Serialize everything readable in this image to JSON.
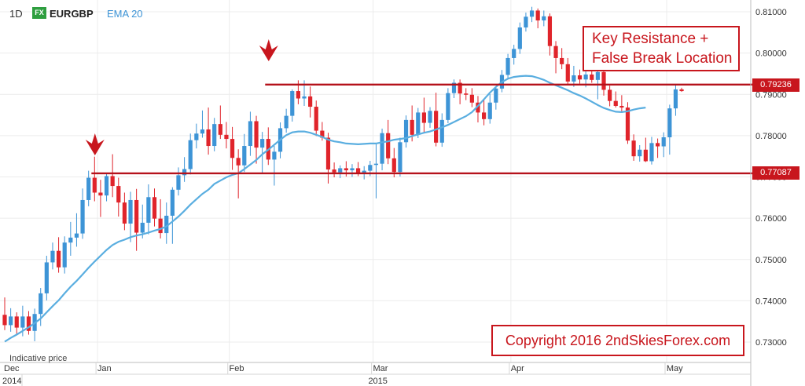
{
  "header": {
    "timeframe": "1D",
    "fx_badge": "FX",
    "symbol": "EURGBP",
    "indicator": "EMA 20"
  },
  "indicative_label": "Indicative price",
  "annotations": {
    "resistance_line1": "Key Resistance +",
    "resistance_line2": "False Break Location",
    "copyright": "Copyright 2016 2ndSkiesForex.com"
  },
  "colors": {
    "up": "#3d94d6",
    "down": "#e0242b",
    "ema": "#5aaee0",
    "level": "#b5121b",
    "annotation": "#c8161d"
  },
  "chart_data": {
    "type": "candlestick",
    "symbol": "EURGBP",
    "timeframe": "1D",
    "ylim": [
      0.7288,
      0.8112
    ],
    "y_ticks": [
      "0.73000",
      "0.74000",
      "0.75000",
      "0.76000",
      "0.77000",
      "0.78000",
      "0.79000",
      "0.80000",
      "0.81000"
    ],
    "x_labels": [
      {
        "label": "Dec",
        "index": 0
      },
      {
        "label": "Jan",
        "index": 16
      },
      {
        "label": "Feb",
        "index": 38
      },
      {
        "label": "Mar",
        "index": 62
      },
      {
        "label": "Apr",
        "index": 85
      },
      {
        "label": "May",
        "index": 111
      }
    ],
    "year_labels": [
      {
        "label": "2014",
        "index": 0
      },
      {
        "label": "2015",
        "index": 62
      }
    ],
    "levels": [
      {
        "value": 0.79236,
        "label": "0.79236"
      },
      {
        "value": 0.77087,
        "label": "0.77087"
      }
    ],
    "markers": [
      {
        "type": "down-arrow",
        "index": 15
      },
      {
        "type": "down-arrow",
        "index": 44
      }
    ],
    "candles": [
      [
        0.7366,
        0.7408,
        0.7329,
        0.7341
      ],
      [
        0.7341,
        0.7382,
        0.7325,
        0.7362
      ],
      [
        0.7362,
        0.7372,
        0.7318,
        0.7335
      ],
      [
        0.7335,
        0.7388,
        0.7314,
        0.7362
      ],
      [
        0.7362,
        0.7375,
        0.7318,
        0.7327
      ],
      [
        0.7327,
        0.7381,
        0.7302,
        0.7368
      ],
      [
        0.7368,
        0.7431,
        0.7339,
        0.7418
      ],
      [
        0.7418,
        0.7509,
        0.7401,
        0.7493
      ],
      [
        0.7493,
        0.7541,
        0.7476,
        0.7521
      ],
      [
        0.7521,
        0.7554,
        0.7468,
        0.7481
      ],
      [
        0.7481,
        0.7556,
        0.7466,
        0.7541
      ],
      [
        0.7541,
        0.7591,
        0.7509,
        0.7553
      ],
      [
        0.7553,
        0.7612,
        0.7531,
        0.7563
      ],
      [
        0.7563,
        0.7672,
        0.755,
        0.7644
      ],
      [
        0.7644,
        0.7715,
        0.7629,
        0.7698
      ],
      [
        0.7698,
        0.7749,
        0.7641,
        0.7662
      ],
      [
        0.7662,
        0.7693,
        0.7603,
        0.7655
      ],
      [
        0.7655,
        0.7709,
        0.7641,
        0.7702
      ],
      [
        0.7702,
        0.7755,
        0.7651,
        0.7678
      ],
      [
        0.7678,
        0.7698,
        0.7604,
        0.7638
      ],
      [
        0.7638,
        0.7662,
        0.7571,
        0.7587
      ],
      [
        0.7587,
        0.7664,
        0.7542,
        0.7644
      ],
      [
        0.7644,
        0.7671,
        0.7521,
        0.7565
      ],
      [
        0.7565,
        0.7633,
        0.7551,
        0.7589
      ],
      [
        0.7589,
        0.7682,
        0.7561,
        0.7651
      ],
      [
        0.7651,
        0.7672,
        0.758,
        0.7599
      ],
      [
        0.7599,
        0.7646,
        0.7551,
        0.7564
      ],
      [
        0.7564,
        0.7638,
        0.7538,
        0.7606
      ],
      [
        0.7606,
        0.7675,
        0.7538,
        0.7669
      ],
      [
        0.7669,
        0.7723,
        0.7655,
        0.7704
      ],
      [
        0.7704,
        0.7748,
        0.7688,
        0.7719
      ],
      [
        0.7719,
        0.7805,
        0.7706,
        0.7789
      ],
      [
        0.7789,
        0.7829,
        0.7769,
        0.7805
      ],
      [
        0.7805,
        0.7861,
        0.7795,
        0.7815
      ],
      [
        0.7815,
        0.7868,
        0.7754,
        0.7775
      ],
      [
        0.7775,
        0.7843,
        0.7762,
        0.7828
      ],
      [
        0.7828,
        0.7873,
        0.7792,
        0.7802
      ],
      [
        0.7802,
        0.7833,
        0.7769,
        0.7792
      ],
      [
        0.7792,
        0.7821,
        0.7717,
        0.7746
      ],
      [
        0.7746,
        0.7767,
        0.7648,
        0.7728
      ],
      [
        0.7728,
        0.7804,
        0.7712,
        0.7775
      ],
      [
        0.7775,
        0.7858,
        0.7751,
        0.7835
      ],
      [
        0.7835,
        0.7848,
        0.7732,
        0.7771
      ],
      [
        0.7771,
        0.7809,
        0.7709,
        0.7792
      ],
      [
        0.7792,
        0.782,
        0.7729,
        0.7742
      ],
      [
        0.7742,
        0.7775,
        0.7679,
        0.7761
      ],
      [
        0.7761,
        0.7832,
        0.7745,
        0.7818
      ],
      [
        0.7818,
        0.7865,
        0.7807,
        0.7848
      ],
      [
        0.7848,
        0.7912,
        0.7834,
        0.7908
      ],
      [
        0.7908,
        0.7934,
        0.7876,
        0.789
      ],
      [
        0.789,
        0.7934,
        0.7872,
        0.7895
      ],
      [
        0.7895,
        0.7919,
        0.7844,
        0.787
      ],
      [
        0.787,
        0.7885,
        0.7799,
        0.7812
      ],
      [
        0.7812,
        0.7833,
        0.7788,
        0.7795
      ],
      [
        0.7795,
        0.7807,
        0.7684,
        0.7718
      ],
      [
        0.7718,
        0.7735,
        0.7699,
        0.7711
      ],
      [
        0.7711,
        0.7728,
        0.7697,
        0.7721
      ],
      [
        0.7721,
        0.7738,
        0.7701,
        0.7716
      ],
      [
        0.7716,
        0.7731,
        0.77,
        0.7721
      ],
      [
        0.7721,
        0.7736,
        0.7702,
        0.7708
      ],
      [
        0.7708,
        0.7726,
        0.7694,
        0.7715
      ],
      [
        0.7715,
        0.7739,
        0.7702,
        0.7729
      ],
      [
        0.7729,
        0.7782,
        0.7648,
        0.7732
      ],
      [
        0.7732,
        0.7817,
        0.7716,
        0.7806
      ],
      [
        0.7806,
        0.7838,
        0.7731,
        0.7745
      ],
      [
        0.7745,
        0.777,
        0.7699,
        0.7712
      ],
      [
        0.7712,
        0.7795,
        0.7701,
        0.7784
      ],
      [
        0.7784,
        0.7849,
        0.7771,
        0.7838
      ],
      [
        0.7838,
        0.7873,
        0.7786,
        0.7802
      ],
      [
        0.7802,
        0.7867,
        0.7794,
        0.7856
      ],
      [
        0.7856,
        0.7892,
        0.7808,
        0.7831
      ],
      [
        0.7831,
        0.7869,
        0.7819,
        0.786
      ],
      [
        0.786,
        0.7904,
        0.7774,
        0.7783
      ],
      [
        0.7783,
        0.7854,
        0.7773,
        0.7838
      ],
      [
        0.7838,
        0.7915,
        0.783,
        0.7903
      ],
      [
        0.7903,
        0.7936,
        0.7891,
        0.7928
      ],
      [
        0.7928,
        0.7936,
        0.7876,
        0.7902
      ],
      [
        0.7902,
        0.7915,
        0.7886,
        0.7899
      ],
      [
        0.7899,
        0.7915,
        0.7869,
        0.788
      ],
      [
        0.788,
        0.7896,
        0.7832,
        0.7856
      ],
      [
        0.7856,
        0.7886,
        0.7825,
        0.784
      ],
      [
        0.784,
        0.7901,
        0.7829,
        0.788
      ],
      [
        0.788,
        0.7916,
        0.7863,
        0.7914
      ],
      [
        0.7914,
        0.7959,
        0.7905,
        0.7947
      ],
      [
        0.7947,
        0.7998,
        0.7937,
        0.7988
      ],
      [
        0.7988,
        0.802,
        0.7972,
        0.801
      ],
      [
        0.801,
        0.8074,
        0.7998,
        0.8062
      ],
      [
        0.8062,
        0.8098,
        0.8052,
        0.8088
      ],
      [
        0.8088,
        0.8112,
        0.8075,
        0.8103
      ],
      [
        0.8103,
        0.8108,
        0.806,
        0.8079
      ],
      [
        0.8079,
        0.8103,
        0.8065,
        0.8089
      ],
      [
        0.8089,
        0.8096,
        0.7994,
        0.8017
      ],
      [
        0.8017,
        0.8029,
        0.7951,
        0.7988
      ],
      [
        0.7988,
        0.8012,
        0.7961,
        0.7973
      ],
      [
        0.7973,
        0.7988,
        0.7922,
        0.7931
      ],
      [
        0.7931,
        0.7969,
        0.7918,
        0.7946
      ],
      [
        0.7946,
        0.796,
        0.7926,
        0.7936
      ],
      [
        0.7936,
        0.7958,
        0.7917,
        0.7948
      ],
      [
        0.7948,
        0.7973,
        0.7928,
        0.7935
      ],
      [
        0.7935,
        0.7989,
        0.7888,
        0.7954
      ],
      [
        0.7954,
        0.7964,
        0.7897,
        0.7911
      ],
      [
        0.7911,
        0.7921,
        0.7871,
        0.7884
      ],
      [
        0.7884,
        0.7907,
        0.7868,
        0.7872
      ],
      [
        0.7872,
        0.7898,
        0.7856,
        0.7868
      ],
      [
        0.7868,
        0.7881,
        0.778,
        0.7788
      ],
      [
        0.7788,
        0.7803,
        0.7739,
        0.775
      ],
      [
        0.775,
        0.7777,
        0.7737,
        0.7766
      ],
      [
        0.7766,
        0.7795,
        0.7736,
        0.7738
      ],
      [
        0.7738,
        0.7797,
        0.773,
        0.7782
      ],
      [
        0.7782,
        0.7793,
        0.7746,
        0.7774
      ],
      [
        0.7774,
        0.7808,
        0.7748,
        0.7796
      ],
      [
        0.7796,
        0.7875,
        0.7754,
        0.7866
      ],
      [
        0.7866,
        0.7923,
        0.7848,
        0.7912
      ],
      [
        0.7912,
        0.7916,
        0.7906,
        0.7908
      ]
    ],
    "ema20": [
      0.7301,
      0.731,
      0.7318,
      0.7327,
      0.7336,
      0.7346,
      0.7357,
      0.7372,
      0.7387,
      0.7401,
      0.7418,
      0.7434,
      0.7448,
      0.7464,
      0.748,
      0.7495,
      0.7509,
      0.7523,
      0.7535,
      0.7543,
      0.7548,
      0.7554,
      0.7558,
      0.7561,
      0.7565,
      0.757,
      0.7574,
      0.758,
      0.7592,
      0.7604,
      0.7618,
      0.7633,
      0.7646,
      0.7659,
      0.7669,
      0.7683,
      0.7691,
      0.7699,
      0.7705,
      0.7709,
      0.7719,
      0.773,
      0.7741,
      0.7755,
      0.7766,
      0.7778,
      0.779,
      0.7801,
      0.7808,
      0.781,
      0.781,
      0.7807,
      0.7802,
      0.7797,
      0.779,
      0.7786,
      0.7784,
      0.7781,
      0.778,
      0.7779,
      0.778,
      0.7781,
      0.7781,
      0.7784,
      0.7786,
      0.779,
      0.7792,
      0.7794,
      0.7799,
      0.7803,
      0.7807,
      0.781,
      0.7815,
      0.782,
      0.7826,
      0.7833,
      0.784,
      0.7847,
      0.7857,
      0.7872,
      0.7888,
      0.7904,
      0.7918,
      0.793,
      0.7938,
      0.7942,
      0.7944,
      0.7945,
      0.7944,
      0.794,
      0.7935,
      0.7928,
      0.7922,
      0.7916,
      0.791,
      0.7903,
      0.7897,
      0.789,
      0.7882,
      0.7874,
      0.7867,
      0.7862,
      0.7858,
      0.7857,
      0.7859,
      0.7863,
      0.7866,
      0.7868
    ]
  }
}
